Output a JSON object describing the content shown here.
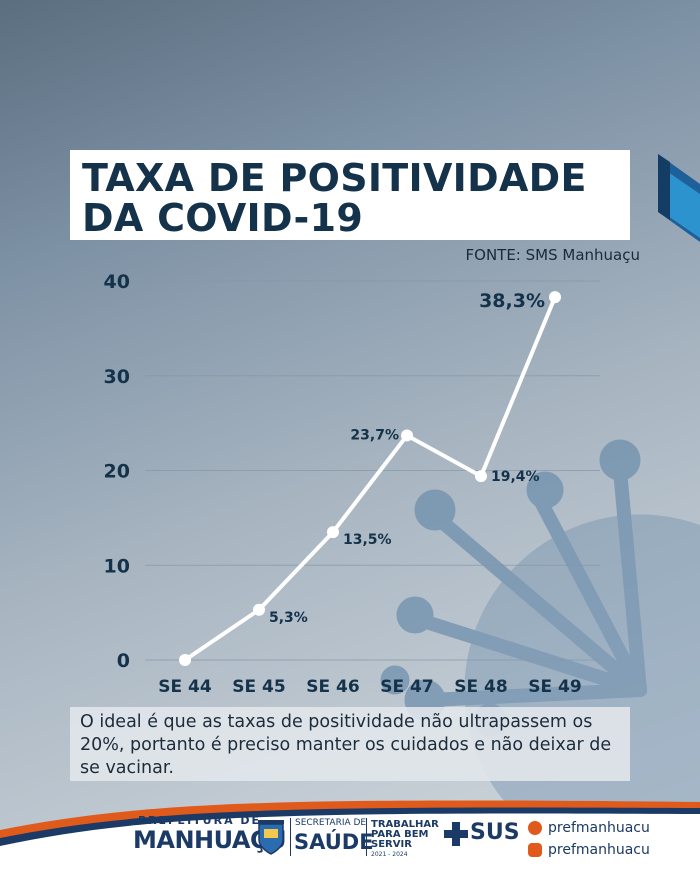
{
  "title": {
    "line1": "TAXA DE POSITIVIDADE",
    "line2": "DA COVID-19"
  },
  "source": "FONTE: SMS Manhuaçu",
  "note": "O ideal é que as taxas de positividade não ultrapassem os 20%, portanto é preciso manter os cuidados e não deixar de se vacinar.",
  "colors": {
    "title": "#15324b",
    "line": "#ffffff",
    "axis_text": "#15324b",
    "accent": "#e05a1c",
    "brand": "#1b3a66",
    "virus": "#6b8fb0"
  },
  "chart_data": {
    "type": "line",
    "title": "TAXA DE POSITIVIDADE DA COVID-19",
    "categories": [
      "SE 44",
      "SE 45",
      "SE 46",
      "SE 47",
      "SE 48",
      "SE 49"
    ],
    "values": [
      0,
      5.3,
      13.5,
      23.7,
      19.4,
      38.3
    ],
    "data_labels": [
      "",
      "5,3%",
      "13,5%",
      "23,7%",
      "19,4%",
      "38,3%"
    ],
    "y_ticks": [
      0,
      10,
      20,
      30,
      40
    ],
    "ylim": [
      0,
      40
    ],
    "grid": true,
    "xlabel": "",
    "ylabel": ""
  },
  "footer": {
    "pref_small": "PREFEITURA DE",
    "pref_big": "MANHUAÇU",
    "crest_caption": "MANHUAÇU",
    "sec_small": "SECRETARIA DE",
    "sec_big": "SAÚDE",
    "slogan": [
      "TRABALHAR",
      "PARA BEM",
      "SERVIR"
    ],
    "years": "2021 - 2024",
    "sus": "SUS",
    "facebook": "prefmanhuacu",
    "instagram": "prefmanhuacu",
    "facebook_icon": "facebook-icon",
    "instagram_icon": "instagram-icon"
  }
}
